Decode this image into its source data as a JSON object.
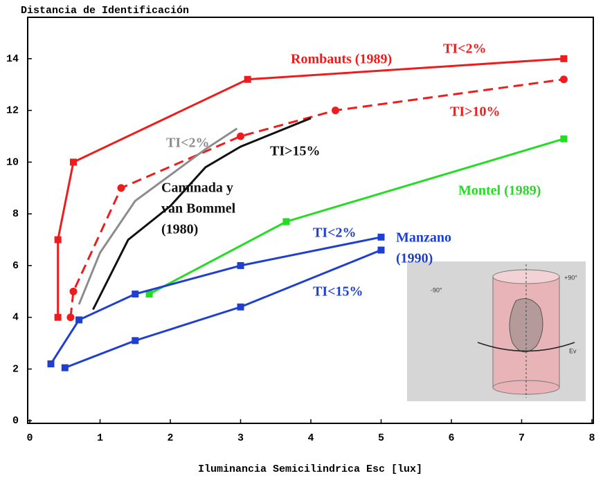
{
  "chart_data": {
    "type": "line",
    "title": "Distancia de Identificación",
    "x_label": "Iluminancia Semicilindrica Esc [lux]",
    "xlim": [
      -0.03,
      8.02
    ],
    "ylim": [
      -0.1,
      15.6
    ],
    "xticks": [
      0,
      1,
      2,
      3,
      4,
      5,
      6,
      7,
      8
    ],
    "yticks": [
      0,
      2,
      4,
      6,
      8,
      10,
      12,
      14
    ],
    "grid": false,
    "series": [
      {
        "color": "#ee1c1c",
        "dash": false,
        "marker": "square",
        "x": [
          0.4,
          0.4,
          0.62,
          3.1,
          7.6
        ],
        "values": [
          4,
          7,
          10,
          13.2,
          14
        ]
      },
      {
        "color": "#ee1c1c",
        "dash": true,
        "marker": "circle",
        "x": [
          0.58,
          0.62,
          1.3,
          3.0,
          4.35,
          7.6
        ],
        "values": [
          4,
          5,
          9,
          11,
          12,
          13.2
        ]
      },
      {
        "color": "#8c8c8c",
        "dash": false,
        "marker": "none",
        "x": [
          0.7,
          1.0,
          1.5,
          2.0,
          2.5,
          2.95
        ],
        "values": [
          4.5,
          6.5,
          8.5,
          9.5,
          10.5,
          11.3
        ]
      },
      {
        "color": "#111111",
        "dash": false,
        "marker": "none",
        "x": [
          0.9,
          1.4,
          2.0,
          2.5,
          3.0,
          4.0
        ],
        "values": [
          4.3,
          7,
          8.3,
          9.8,
          10.6,
          11.7
        ]
      },
      {
        "color": "#22dd22",
        "dash": false,
        "marker": "square",
        "x": [
          1.7,
          3.65,
          7.6
        ],
        "values": [
          4.9,
          7.7,
          10.9
        ]
      },
      {
        "color": "#1f3fd0",
        "dash": false,
        "marker": "square",
        "x": [
          0.3,
          0.7,
          1.5,
          3.0,
          5.0
        ],
        "values": [
          2.2,
          3.9,
          4.9,
          6,
          7.1
        ]
      },
      {
        "color": "#1f3fd0",
        "dash": false,
        "marker": "square",
        "x": [
          0.5,
          1.5,
          3.0,
          5.0
        ],
        "values": [
          2.05,
          3.1,
          4.4,
          6.6
        ]
      }
    ],
    "annotations": [
      {
        "lines": [
          "Rombauts (1989)"
        ],
        "color": "#ee1c1c"
      },
      {
        "lines": [
          "TI<2%"
        ],
        "color": "#ee1c1c"
      },
      {
        "lines": [
          "TI>10%"
        ],
        "color": "#ee1c1c"
      },
      {
        "lines": [
          "TI<2%"
        ],
        "color": "#8c8c8c"
      },
      {
        "lines": [
          "TI>15%"
        ],
        "color": "#111111"
      },
      {
        "lines": [
          "Caminada y",
          "van Bommel",
          "(1980)"
        ],
        "color": "#111111"
      },
      {
        "lines": [
          "Montel (1989)"
        ],
        "color": "#22dd22"
      },
      {
        "lines": [
          "TI<2%"
        ],
        "color": "#1f3fd0"
      },
      {
        "lines": [
          "Manzano",
          "(1990)"
        ],
        "color": "#1f3fd0"
      },
      {
        "lines": [
          "TI<15%"
        ],
        "color": "#1f3fd0"
      }
    ],
    "inset_labels": [
      "-90°",
      "+90°",
      "Ev"
    ]
  }
}
